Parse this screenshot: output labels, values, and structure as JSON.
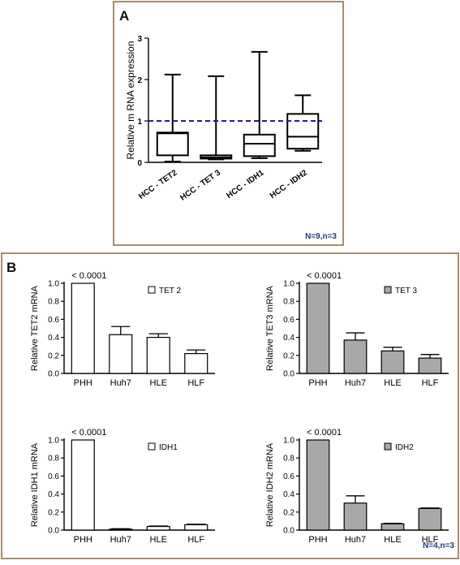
{
  "panel_a": {
    "letter": "A",
    "n_label": "N=9,n=3"
  },
  "panel_b": {
    "letter": "B",
    "n_label": "N=4,n=3"
  },
  "chart_data": [
    {
      "type": "boxplot",
      "ylabel": "Relative m RNA expression",
      "ylim": [
        0,
        3
      ],
      "yticks": [
        0,
        1,
        2,
        3
      ],
      "reference_line": {
        "y": 1,
        "style": "dashed",
        "color": "#1a1aa8"
      },
      "categories": [
        "HCC - TET2",
        "HCC - TET 3",
        "HCC - IDH1",
        "HCC - IDH2"
      ],
      "boxes": [
        {
          "min": 0.02,
          "q1": 0.17,
          "median": 0.7,
          "q3": 0.72,
          "max": 2.12
        },
        {
          "min": 0.07,
          "q1": 0.09,
          "median": 0.12,
          "q3": 0.17,
          "max": 2.08
        },
        {
          "min": 0.1,
          "q1": 0.15,
          "median": 0.45,
          "q3": 0.67,
          "max": 2.67
        },
        {
          "min": 0.28,
          "q1": 0.33,
          "median": 0.62,
          "q3": 1.17,
          "max": 1.62
        }
      ]
    },
    {
      "type": "bar",
      "ylabel": "Relative TET2 mRNA",
      "legend": "TET 2",
      "annotation": "< 0.0001",
      "fill": "#ffffff",
      "ylim": [
        0,
        1.0
      ],
      "yticks": [
        "0.0",
        "0.2",
        "0.4",
        "0.6",
        "0.8",
        "1.0"
      ],
      "categories": [
        "PHH",
        "Huh7",
        "HLE",
        "HLF"
      ],
      "values": [
        1.0,
        0.43,
        0.4,
        0.22
      ],
      "errors": [
        0,
        0.09,
        0.04,
        0.04
      ]
    },
    {
      "type": "bar",
      "ylabel": "Relative TET3 mRNA",
      "legend": "TET 3",
      "annotation": "< 0.0001",
      "fill": "#a8a8a8",
      "ylim": [
        0,
        1.0
      ],
      "yticks": [
        "0.0",
        "0.2",
        "0.4",
        "0.6",
        "0.8",
        "1.0"
      ],
      "categories": [
        "PHH",
        "Huh7",
        "HLE",
        "HLF"
      ],
      "values": [
        1.0,
        0.37,
        0.25,
        0.17
      ],
      "errors": [
        0,
        0.08,
        0.04,
        0.04
      ]
    },
    {
      "type": "bar",
      "ylabel": "Relative IDH1 mRNA",
      "legend": "IDH1",
      "annotation": "< 0.0001",
      "fill": "#ffffff",
      "ylim": [
        0,
        1.0
      ],
      "yticks": [
        "0.0",
        "0.2",
        "0.4",
        "0.6",
        "0.8",
        "1.0"
      ],
      "categories": [
        "PHH",
        "Huh7",
        "HLE",
        "HLF"
      ],
      "values": [
        1.0,
        0.01,
        0.04,
        0.06
      ],
      "errors": [
        0,
        0.005,
        0.005,
        0.005
      ]
    },
    {
      "type": "bar",
      "ylabel": "Relative IDH2 mRNA",
      "legend": "IDH2",
      "annotation": "< 0.0001",
      "fill": "#a8a8a8",
      "ylim": [
        0,
        1.0
      ],
      "yticks": [
        "0.0",
        "0.2",
        "0.4",
        "0.6",
        "0.8",
        "1.0"
      ],
      "categories": [
        "PHH",
        "Huh7",
        "HLE",
        "HLF"
      ],
      "values": [
        1.0,
        0.3,
        0.07,
        0.24
      ],
      "errors": [
        0,
        0.08,
        0.005,
        0.005
      ]
    }
  ]
}
